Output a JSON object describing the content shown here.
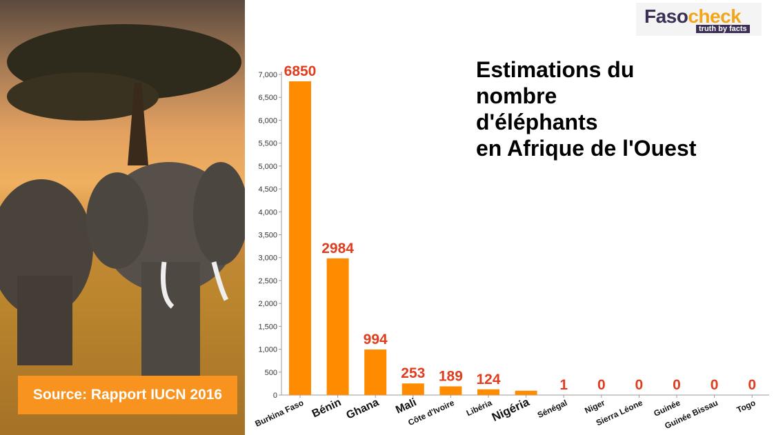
{
  "source_label": "Source: Rapport IUCN 2016",
  "logo": {
    "name_a": "Faso",
    "name_b": "check",
    "tagline": "truth by facts"
  },
  "colors": {
    "bar": "#ff8c00",
    "value_label": "#e03c1e",
    "source_bg": "#f7931e"
  },
  "chart_data": {
    "type": "bar",
    "title": "Estimations du\nnombre\nd'éléphants\nen Afrique de l'Ouest",
    "categories": [
      "Burkina Faso",
      "Bénin",
      "Ghana",
      "Mali",
      "Côte d'Ivoire",
      "Libéria",
      "Nigéria",
      "Sénégal",
      "Niger",
      "Sierra Léone",
      "Guinée",
      "Guinée Bissau",
      "Togo"
    ],
    "values": [
      6850,
      2984,
      994,
      253,
      189,
      124,
      94,
      1,
      0,
      0,
      0,
      0,
      0
    ],
    "value_labels": [
      "6850",
      "2984",
      "994",
      "253",
      "189",
      "124",
      "",
      "1",
      "0",
      "0",
      "0",
      "0",
      "0"
    ],
    "ylim": [
      0,
      7000
    ],
    "yticks": [
      "0",
      "500",
      "1,000",
      "1,500",
      "2,000",
      "2,500",
      "3,000",
      "3,500",
      "4,000",
      "4,500",
      "5,000",
      "5,500",
      "6,000",
      "6,500",
      "7,000"
    ],
    "xlabel": "",
    "ylabel": "",
    "grid": false
  }
}
